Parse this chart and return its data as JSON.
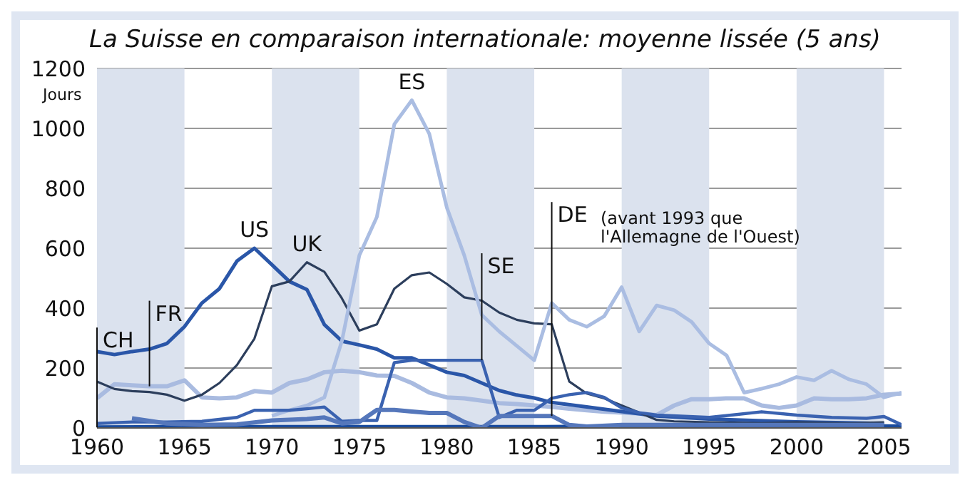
{
  "chart_data": {
    "type": "line",
    "title": "La Suisse en comparaison internationale: moyenne lissée (5 ans)",
    "ylabel": "Jours",
    "xlim": [
      1960,
      2006
    ],
    "xticks": [
      1960,
      1965,
      1970,
      1975,
      1980,
      1985,
      1990,
      1995,
      2000,
      2005
    ],
    "ylim": [
      0,
      1200
    ],
    "yticks": [
      0,
      200,
      400,
      600,
      800,
      1000,
      1200
    ],
    "grid": "y",
    "legend": false,
    "marker": "none",
    "bands": [
      {
        "axis": "x",
        "from": 1960,
        "to": 1965,
        "color": "#dbe2ee"
      },
      {
        "axis": "x",
        "from": 1970,
        "to": 1975,
        "color": "#dbe2ee"
      },
      {
        "axis": "x",
        "from": 1980,
        "to": 1985,
        "color": "#dbe2ee"
      },
      {
        "axis": "x",
        "from": 1990,
        "to": 1995,
        "color": "#dbe2ee"
      },
      {
        "axis": "x",
        "from": 2000,
        "to": 2005,
        "color": "#dbe2ee"
      }
    ],
    "annotations": [
      "(avant 1993 que\nl'Allemagne de l'Ouest)"
    ],
    "series": [
      {
        "name": "CH",
        "color": "#1a4b9c",
        "x": [
          1960,
          1965,
          1970,
          1975,
          1980,
          1985,
          1990,
          1995,
          2000,
          2006
        ],
        "values": [
          2,
          3,
          3,
          3,
          3,
          3,
          5,
          5,
          8,
          5
        ]
      },
      {
        "name": "FR",
        "color": "#a9bbe0",
        "x": [
          1960,
          1961,
          1962,
          1963,
          1964,
          1965,
          1966,
          1967,
          1968,
          1969,
          1970,
          1971,
          1972,
          1973,
          1974,
          1975,
          1976,
          1977,
          1978,
          1979,
          1980,
          1981,
          1982,
          1983,
          1984,
          1985,
          1986,
          1987,
          1988,
          1989,
          1990,
          1991,
          1992,
          1993,
          1994,
          1995,
          1996,
          1997,
          1998,
          1999,
          2000,
          2001,
          2002,
          2003,
          2004,
          2005,
          2006
        ],
        "values": [
          99,
          146,
          142,
          139,
          139,
          159,
          102,
          99,
          102,
          123,
          118,
          150,
          162,
          186,
          191,
          186,
          175,
          174,
          150,
          118,
          102,
          99,
          91,
          83,
          80,
          75,
          70,
          64,
          59,
          54,
          51,
          48,
          43,
          75,
          96,
          96,
          99,
          99,
          75,
          67,
          75,
          99,
          96,
          96,
          99,
          111,
          115
        ]
      },
      {
        "name": "US",
        "color": "#2a56a8",
        "x": [
          1960,
          1961,
          1962,
          1963,
          1964,
          1965,
          1966,
          1967,
          1968,
          1969,
          1970,
          1971,
          1972,
          1973,
          1974,
          1975,
          1976,
          1977,
          1978,
          1979,
          1980,
          1981,
          1982,
          1983,
          1984,
          1985,
          1986,
          1988,
          1990,
          1992,
          1995,
          2000,
          2005
        ],
        "values": [
          255,
          245,
          255,
          263,
          282,
          338,
          417,
          465,
          557,
          600,
          545,
          489,
          462,
          345,
          290,
          277,
          263,
          234,
          234,
          210,
          186,
          175,
          150,
          125,
          110,
          100,
          85,
          70,
          55,
          40,
          30,
          20,
          15
        ]
      },
      {
        "name": "UK",
        "color": "#2c3e5c",
        "x": [
          1960,
          1961,
          1962,
          1963,
          1964,
          1965,
          1966,
          1967,
          1968,
          1969,
          1970,
          1971,
          1972,
          1973,
          1974,
          1975,
          1976,
          1977,
          1978,
          1979,
          1980,
          1981,
          1982,
          1983,
          1984,
          1985,
          1986,
          1987,
          1988,
          1989,
          1990,
          1991,
          1992,
          1993,
          1995,
          1998,
          2000,
          2003,
          2005
        ],
        "values": [
          155,
          130,
          123,
          120,
          111,
          91,
          111,
          150,
          210,
          298,
          473,
          489,
          553,
          521,
          433,
          325,
          346,
          465,
          510,
          519,
          481,
          436,
          425,
          385,
          361,
          349,
          346,
          155,
          115,
          99,
          75,
          51,
          27,
          22,
          19,
          16,
          19,
          16,
          19
        ]
      },
      {
        "name": "ES",
        "color": "#aabde2",
        "x": [
          1970,
          1971,
          1972,
          1973,
          1974,
          1975,
          1976,
          1977,
          1978,
          1979,
          1980,
          1981,
          1982,
          1983,
          1984,
          1985,
          1986,
          1987,
          1988,
          1989,
          1990,
          1991,
          1992,
          1993,
          1994,
          1995,
          1996,
          1997,
          1998,
          1999,
          2000,
          2001,
          2002,
          2003,
          2004,
          2005,
          2006
        ],
        "values": [
          40,
          59,
          75,
          102,
          290,
          576,
          704,
          1014,
          1094,
          982,
          736,
          576,
          377,
          322,
          274,
          226,
          417,
          361,
          338,
          373,
          470,
          322,
          409,
          393,
          354,
          282,
          242,
          118,
          131,
          146,
          170,
          159,
          191,
          162,
          146,
          102,
          118
        ]
      },
      {
        "name": "SE",
        "color": "#3a62b0",
        "x": [
          1960,
          1962,
          1964,
          1966,
          1968,
          1969,
          1970,
          1971,
          1972,
          1973,
          1974,
          1975,
          1976,
          1977,
          1978,
          1979,
          1980,
          1981,
          1982,
          1983,
          1984,
          1985,
          1986,
          1987,
          1988,
          1989,
          1990,
          1991,
          1992,
          1995,
          1998,
          2000,
          2002,
          2004,
          2005,
          2006
        ],
        "values": [
          15,
          20,
          20,
          22,
          35,
          59,
          59,
          59,
          64,
          70,
          22,
          25,
          25,
          218,
          226,
          226,
          226,
          226,
          226,
          35,
          59,
          59,
          99,
          111,
          118,
          102,
          67,
          51,
          43,
          35,
          54,
          43,
          35,
          32,
          38,
          11
        ]
      },
      {
        "name": "DE",
        "color": "#5577bb",
        "x": [
          1962,
          1964,
          1966,
          1968,
          1970,
          1972,
          1973,
          1974,
          1975,
          1976,
          1977,
          1978,
          1979,
          1980,
          1981,
          1982,
          1983,
          1984,
          1985,
          1986,
          1987,
          1988,
          1990,
          1992,
          1995,
          2000,
          2005
        ],
        "values": [
          32,
          15,
          10,
          12,
          25,
          30,
          35,
          15,
          20,
          60,
          60,
          55,
          50,
          50,
          20,
          0,
          40,
          40,
          40,
          40,
          10,
          5,
          10,
          10,
          10,
          10,
          10
        ]
      }
    ]
  }
}
